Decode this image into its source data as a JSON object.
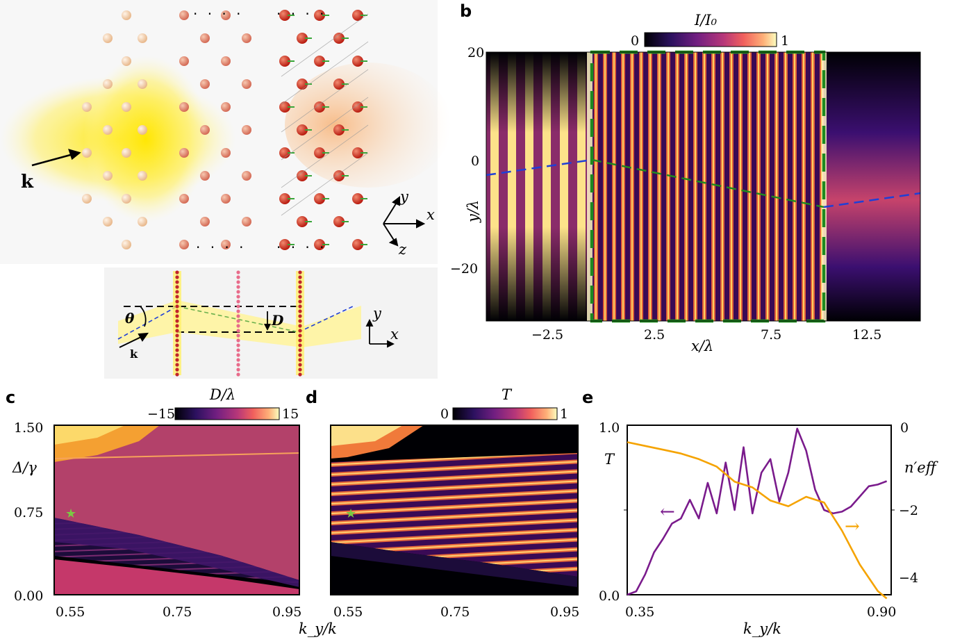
{
  "panels": {
    "a": "a",
    "b": "b",
    "c": "c",
    "d": "d",
    "e": "e"
  },
  "panel_a": {
    "k_label": "k",
    "dots": "· · · ·",
    "axis_x": "x",
    "axis_y": "y",
    "axis_z": "z",
    "theta": "θ",
    "D": "D",
    "k_small": "k",
    "inset_x": "x",
    "inset_y": "y"
  },
  "colors": {
    "magma_dark": "#000004",
    "magma_mid": "#b63679",
    "magma_bright": "#fcfdbf",
    "green_dash": "#1f8a1f",
    "blue_dash": "#1f3fd6",
    "purple": "#7a1b8c",
    "orange": "#f5a300"
  },
  "chart_data": [
    {
      "type": "heatmap",
      "panel": "b",
      "colorbar": {
        "label": "I/I₀",
        "ticks": [
          "0",
          "1"
        ],
        "range": [
          0,
          1
        ],
        "colormap": "magma"
      },
      "xlabel": "x/λ",
      "ylabel": "y/λ",
      "xticks": [
        "−2.5",
        "2.5",
        "7.5",
        "12.5"
      ],
      "yticks": [
        "20",
        "0",
        "−20"
      ],
      "xlim": [
        -5,
        14.5
      ],
      "ylim": [
        -30,
        20
      ],
      "slab": {
        "x_start": 0,
        "x_end": 10.5
      },
      "beam_in": {
        "x": [
          -5,
          0
        ],
        "y": [
          -2.5,
          0
        ]
      },
      "beam_slab": {
        "x": [
          0,
          10.5
        ],
        "y": [
          0,
          -9
        ]
      },
      "beam_out": {
        "x": [
          10.5,
          14.5
        ],
        "y": [
          -9,
          -6
        ]
      }
    },
    {
      "type": "heatmap",
      "panel": "c",
      "colorbar": {
        "label": "D/λ",
        "ticks": [
          "−15",
          "15"
        ],
        "range": [
          -15,
          15
        ],
        "colormap": "magma"
      },
      "xlabel": "k_y/k",
      "ylabel": "Δ/γ",
      "xticks": [
        "0.55",
        "0.75",
        "0.95"
      ],
      "yticks": [
        "1.50",
        "0.75",
        "0.00"
      ],
      "xlim": [
        0.5,
        0.97
      ],
      "ylim": [
        0,
        1.5
      ],
      "marker": {
        "x": 0.55,
        "y": 0.75,
        "symbol": "★"
      }
    },
    {
      "type": "heatmap",
      "panel": "d",
      "colorbar": {
        "label": "T",
        "ticks": [
          "0",
          "1"
        ],
        "range": [
          0,
          1
        ],
        "colormap": "magma"
      },
      "xlabel": "k_y/k",
      "xticks": [
        "0.55",
        "0.75",
        "0.95"
      ],
      "xlim": [
        0.5,
        0.97
      ],
      "ylim": [
        0,
        1.5
      ],
      "marker": {
        "x": 0.55,
        "y": 0.75,
        "symbol": "★"
      }
    },
    {
      "type": "line",
      "panel": "e",
      "xlabel": "k_y/k",
      "ylabel_left": "T",
      "ylabel_right": "n′eff",
      "xticks": [
        "0.35",
        "0.90"
      ],
      "yticks_left": [
        "1.0",
        "0.0"
      ],
      "yticks_right": [
        "0",
        "−2",
        "−4"
      ],
      "xlim": [
        0.33,
        0.92
      ],
      "ylim_left": [
        0,
        1
      ],
      "ylim_right": [
        -4.5,
        0
      ],
      "series": [
        {
          "axis": "left",
          "color": "#7a1b8c",
          "x": [
            0.33,
            0.35,
            0.37,
            0.39,
            0.41,
            0.43,
            0.45,
            0.47,
            0.49,
            0.51,
            0.53,
            0.55,
            0.57,
            0.59,
            0.61,
            0.63,
            0.65,
            0.67,
            0.69,
            0.71,
            0.73,
            0.75,
            0.77,
            0.79,
            0.81,
            0.83,
            0.85,
            0.87,
            0.89,
            0.91
          ],
          "y": [
            0.0,
            0.02,
            0.12,
            0.25,
            0.33,
            0.42,
            0.45,
            0.56,
            0.45,
            0.66,
            0.48,
            0.78,
            0.5,
            0.87,
            0.48,
            0.72,
            0.8,
            0.55,
            0.72,
            0.98,
            0.85,
            0.62,
            0.5,
            0.48,
            0.49,
            0.52,
            0.58,
            0.64,
            0.65,
            0.67
          ]
        },
        {
          "axis": "right",
          "color": "#f5a300",
          "x": [
            0.33,
            0.37,
            0.41,
            0.45,
            0.49,
            0.53,
            0.57,
            0.61,
            0.65,
            0.69,
            0.73,
            0.77,
            0.81,
            0.85,
            0.89,
            0.91
          ],
          "y": [
            -0.45,
            -0.55,
            -0.65,
            -0.75,
            -0.9,
            -1.1,
            -1.5,
            -1.65,
            -2.0,
            -2.15,
            -1.9,
            -2.05,
            -2.8,
            -3.7,
            -4.4,
            -4.6
          ]
        }
      ],
      "arrows": [
        "←",
        "→"
      ]
    }
  ]
}
